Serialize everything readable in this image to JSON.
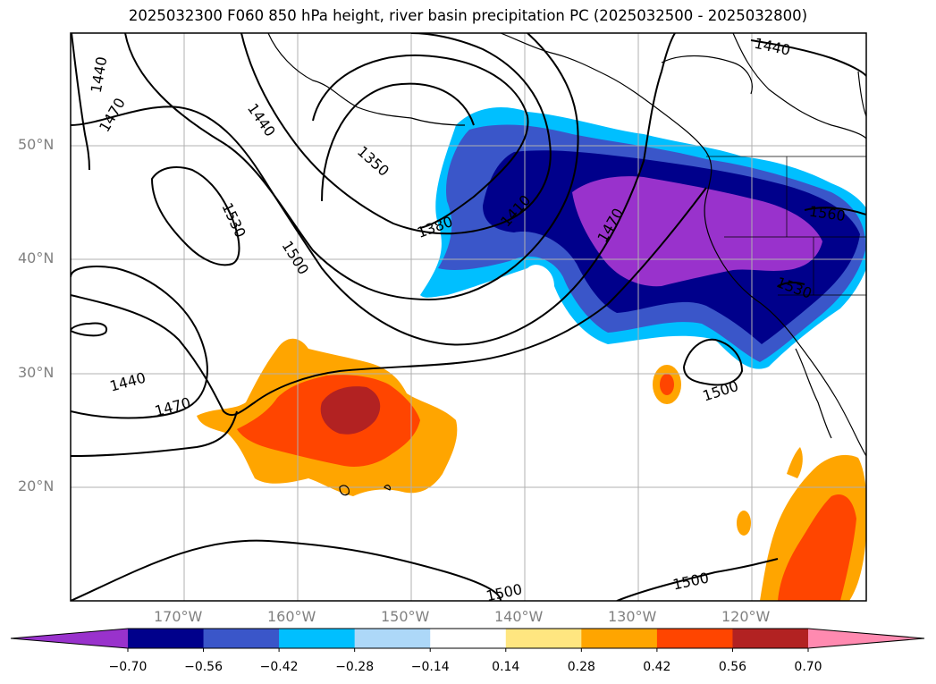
{
  "title": "2025032300 F060 850 hPa height, river basin precipitation PC (2025032500 - 2025032800)",
  "map": {
    "lat_labels": [
      "50°N",
      "40°N",
      "30°N",
      "20°N"
    ],
    "lon_labels": [
      "170°W",
      "160°W",
      "150°W",
      "140°W",
      "130°W",
      "120°W"
    ],
    "contour_labels": [
      "1440",
      "1470",
      "1440",
      "1350",
      "1380",
      "1410",
      "1470",
      "1440",
      "1530",
      "1500",
      "1440",
      "1470",
      "1560",
      "1530",
      "1500",
      "1500",
      "1500"
    ],
    "gridlines": true,
    "coastlines": true
  },
  "colorbar": {
    "ticks": [
      "−0.70",
      "−0.56",
      "−0.42",
      "−0.28",
      "−0.14",
      "0.14",
      "0.28",
      "0.42",
      "0.56",
      "0.70"
    ],
    "colors": [
      "#9932cc",
      "#00008b",
      "#3a56c9",
      "#00bfff",
      "#add8f8",
      "#ffffff",
      "#ffe680",
      "#ffa500",
      "#ff4500",
      "#b22222",
      "#ff8ab0"
    ],
    "extend": "both"
  }
}
